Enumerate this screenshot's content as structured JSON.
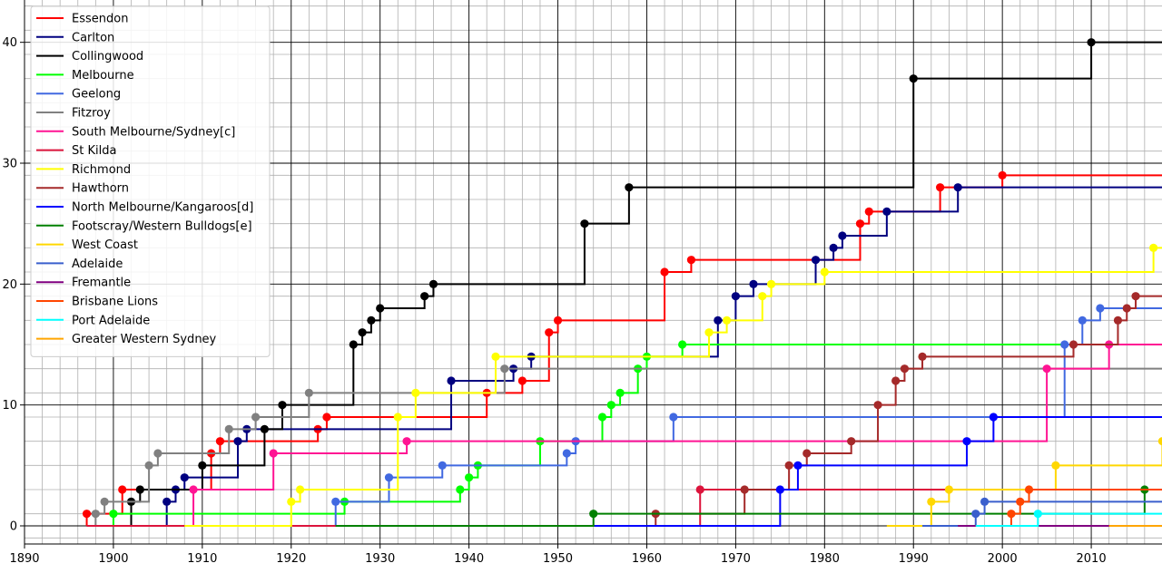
{
  "chart_data": {
    "type": "line",
    "step": true,
    "markers": "premiership-years",
    "xlabel": "",
    "ylabel": "",
    "xlim": [
      1890,
      2020
    ],
    "ylim": [
      -1.5,
      43.5
    ],
    "xticks": [
      1890,
      1900,
      1910,
      1920,
      1930,
      1940,
      1950,
      1960,
      1970,
      1980,
      1990,
      2000,
      2010,
      2020
    ],
    "yticks": [
      0,
      10,
      20,
      30,
      40
    ],
    "grid": "major and minor",
    "legend_position": "top-left",
    "series": [
      {
        "name": "Essendon",
        "color": "#ff0000",
        "start": 1897,
        "x": [
          1897,
          1901,
          1911,
          1912,
          1923,
          1924,
          1942,
          1946,
          1949,
          1950,
          1962,
          1965,
          1984,
          1985,
          1993,
          2000
        ],
        "y": [
          1,
          3,
          6,
          7,
          8,
          9,
          11,
          12,
          16,
          17,
          21,
          22,
          25,
          26,
          28,
          29
        ],
        "end_year": 2019,
        "end_value": 30
      },
      {
        "name": "Carlton",
        "color": "#000080",
        "start": 1897,
        "x": [
          1906,
          1907,
          1908,
          1914,
          1915,
          1938,
          1945,
          1947,
          1968,
          1970,
          1972,
          1979,
          1981,
          1982,
          1987,
          1995
        ],
        "y": [
          2,
          3,
          4,
          7,
          8,
          12,
          13,
          14,
          17,
          19,
          20,
          22,
          23,
          24,
          26,
          28
        ],
        "end_year": 2019,
        "end_value": 29
      },
      {
        "name": "Collingwood",
        "color": "#000000",
        "start": 1897,
        "x": [
          1902,
          1903,
          1910,
          1917,
          1919,
          1927,
          1928,
          1929,
          1930,
          1935,
          1936,
          1953,
          1958,
          1990,
          2010
        ],
        "y": [
          2,
          3,
          5,
          8,
          10,
          15,
          16,
          17,
          18,
          19,
          20,
          25,
          28,
          37,
          40
        ],
        "end_year": 2019,
        "end_value": 42
      },
      {
        "name": "Melbourne",
        "color": "#00ff00",
        "start": 1897,
        "x": [
          1900,
          1926,
          1939,
          1940,
          1941,
          1948,
          1955,
          1956,
          1957,
          1959,
          1960,
          1964
        ],
        "y": [
          1,
          2,
          3,
          4,
          5,
          7,
          9,
          10,
          11,
          13,
          14,
          15
        ],
        "end_year": 2019,
        "end_value": 17
      },
      {
        "name": "Geelong",
        "color": "#4169e1",
        "start": 1897,
        "x": [
          1925,
          1931,
          1937,
          1951,
          1952,
          1963,
          2007,
          2009,
          2011
        ],
        "y": [
          2,
          4,
          5,
          6,
          7,
          9,
          15,
          17,
          18
        ],
        "end_year": 2019,
        "end_value": 18
      },
      {
        "name": "Fitzroy",
        "color": "#808080",
        "start": 1897,
        "x": [
          1898,
          1899,
          1904,
          1905,
          1913,
          1916,
          1922,
          1944
        ],
        "y": [
          1,
          2,
          5,
          6,
          8,
          9,
          11,
          13
        ],
        "end_year": 2019,
        "end_value": 13
      },
      {
        "name": "South Melbourne/Sydney[c]",
        "color": "#ff1493",
        "start": 1897,
        "x": [
          1909,
          1918,
          1933,
          2005,
          2012
        ],
        "y": [
          3,
          6,
          7,
          13,
          15
        ],
        "end_year": 2019,
        "end_value": 17
      },
      {
        "name": "St Kilda",
        "color": "#dc143c",
        "start": 1897,
        "x": [
          1966
        ],
        "y": [
          3
        ],
        "end_year": 2019,
        "end_value": 3
      },
      {
        "name": "Richmond",
        "color": "#ffff00",
        "start": 1908,
        "x": [
          1920,
          1921,
          1932,
          1934,
          1943,
          1967,
          1969,
          1973,
          1974,
          1980,
          2017,
          2019
        ],
        "y": [
          2,
          3,
          9,
          11,
          14,
          16,
          17,
          19,
          20,
          21,
          23,
          24
        ],
        "end_year": 2019,
        "end_value": 24
      },
      {
        "name": "Hawthorn",
        "color": "#a52a2a",
        "start": 1925,
        "x": [
          1961,
          1971,
          1976,
          1978,
          1983,
          1986,
          1988,
          1989,
          1991,
          2008,
          2013,
          2014,
          2015
        ],
        "y": [
          1,
          3,
          5,
          6,
          7,
          10,
          12,
          13,
          14,
          15,
          17,
          18,
          19
        ],
        "end_year": 2019,
        "end_value": 19
      },
      {
        "name": "North Melbourne/Kangaroos[d]",
        "color": "#0000ff",
        "start": 1925,
        "x": [
          1975,
          1977,
          1996,
          1999
        ],
        "y": [
          3,
          5,
          7,
          9
        ],
        "end_year": 2019,
        "end_value": 9
      },
      {
        "name": "Footscray/Western Bulldogs[e]",
        "color": "#008000",
        "start": 1925,
        "x": [
          1954,
          2016
        ],
        "y": [
          1,
          3
        ],
        "end_year": 2019,
        "end_value": 3
      },
      {
        "name": "West Coast",
        "color": "#ffd700",
        "start": 1987,
        "x": [
          1992,
          1994,
          2006,
          2018
        ],
        "y": [
          2,
          3,
          5,
          7
        ],
        "end_year": 2019,
        "end_value": 7
      },
      {
        "name": "Adelaide",
        "color": "#3a5fcd",
        "start": 1991,
        "x": [
          1997,
          1998
        ],
        "y": [
          1,
          2
        ],
        "end_year": 2019,
        "end_value": 3
      },
      {
        "name": "Fremantle",
        "color": "#800080",
        "start": 1995,
        "x": [],
        "y": [],
        "end_year": 2019,
        "end_value": 1
      },
      {
        "name": "Brisbane Lions",
        "color": "#ff4500",
        "start": 1997,
        "x": [
          2001,
          2002,
          2003
        ],
        "y": [
          1,
          2,
          3
        ],
        "end_year": 2019,
        "end_value": 4
      },
      {
        "name": "Port Adelaide",
        "color": "#00ffff",
        "start": 1997,
        "x": [
          2004
        ],
        "y": [
          1
        ],
        "end_year": 2019,
        "end_value": 2
      },
      {
        "name": "Greater Western Sydney",
        "color": "#ffa500",
        "start": 2012,
        "x": [],
        "y": [],
        "end_year": 2019,
        "end_value": 1
      }
    ]
  }
}
